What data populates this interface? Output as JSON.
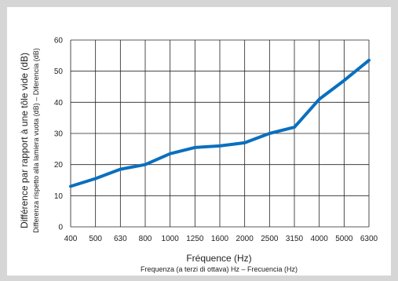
{
  "chart_data": {
    "type": "line",
    "title": "",
    "xlabel": "Fréquence (Hz)",
    "xlabel_secondary": "Frequenza (a terzi di ottava) Hz – Frecuencia (Hz)",
    "ylabel": "Différence par rapport à une tôle vide (dB)",
    "ylabel_secondary": "Differenza rispetto alla lamiera vuota (dB) – Diferencia (dB)",
    "categories": [
      "400",
      "500",
      "630",
      "800",
      "1000",
      "1250",
      "1600",
      "2000",
      "2500",
      "3150",
      "4000",
      "5000",
      "6300"
    ],
    "series": [
      {
        "values": [
          13,
          15.5,
          18.5,
          20,
          23.5,
          25.5,
          26,
          27,
          30,
          32,
          41,
          47,
          53.5
        ]
      }
    ],
    "yticks": [
      "0",
      "10",
      "20",
      "30",
      "40",
      "50",
      "60"
    ],
    "ylim": [
      0,
      60
    ],
    "grid": true,
    "legend": "none",
    "colors": {
      "line": "#0a6fbf",
      "grid": "#222222",
      "background": "#d6d6d6",
      "panel": "#ffffff"
    }
  }
}
